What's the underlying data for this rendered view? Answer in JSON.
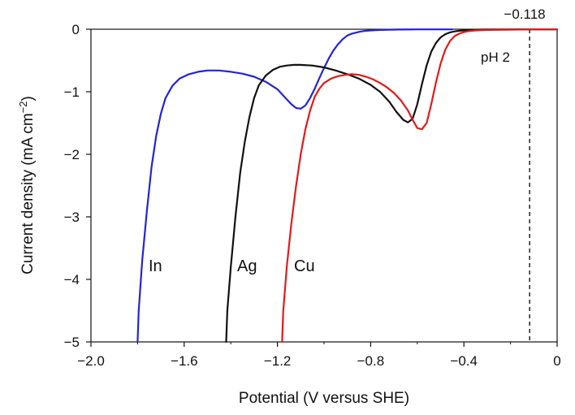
{
  "chart_data": {
    "type": "line",
    "title": "",
    "xlabel": "Potential (V versus SHE)",
    "ylabel_main": "Current density (mA cm",
    "ylabel_sup": "−2",
    "ylabel_close": ")",
    "xlim": [
      -2.0,
      0
    ],
    "ylim": [
      -5,
      0
    ],
    "x_ticks": [
      -2.0,
      -1.6,
      -1.2,
      -0.8,
      -0.4,
      0
    ],
    "x_tick_labels": [
      "−2.0",
      "−1.6",
      "−1.2",
      "−0.8",
      "−0.4",
      "0"
    ],
    "y_ticks": [
      0,
      -1,
      -2,
      -3,
      -4,
      -5
    ],
    "y_tick_labels": [
      "0",
      "−1",
      "−2",
      "−3",
      "−4",
      "−5"
    ],
    "grid": false,
    "reference_line": {
      "x": -0.118,
      "label": "−0.118",
      "style": "dashed",
      "color": "#222222"
    },
    "annotations": [
      {
        "text": "pH 2"
      }
    ],
    "series": [
      {
        "name": "In",
        "color": "#2424d6",
        "x": [
          -1.8,
          -1.795,
          -1.78,
          -1.76,
          -1.74,
          -1.72,
          -1.7,
          -1.68,
          -1.65,
          -1.62,
          -1.58,
          -1.54,
          -1.5,
          -1.45,
          -1.4,
          -1.35,
          -1.3,
          -1.25,
          -1.2,
          -1.17,
          -1.14,
          -1.12,
          -1.1,
          -1.08,
          -1.06,
          -1.04,
          -1.02,
          -1.0,
          -0.98,
          -0.96,
          -0.94,
          -0.92,
          -0.9,
          -0.88,
          -0.86,
          -0.84,
          -0.82,
          -0.8,
          -0.78,
          -0.76,
          -0.72,
          -0.68,
          -0.6,
          -0.5,
          -0.45
        ],
        "values": [
          -5.0,
          -4.5,
          -3.7,
          -2.9,
          -2.2,
          -1.7,
          -1.35,
          -1.1,
          -0.9,
          -0.79,
          -0.72,
          -0.68,
          -0.66,
          -0.66,
          -0.68,
          -0.71,
          -0.76,
          -0.84,
          -0.96,
          -1.08,
          -1.2,
          -1.26,
          -1.27,
          -1.22,
          -1.1,
          -0.95,
          -0.78,
          -0.62,
          -0.47,
          -0.34,
          -0.24,
          -0.16,
          -0.1,
          -0.07,
          -0.05,
          -0.035,
          -0.025,
          -0.02,
          -0.015,
          -0.012,
          -0.008,
          -0.005,
          -0.003,
          -0.002,
          -0.002
        ]
      },
      {
        "name": "Ag",
        "color": "#111111",
        "x": [
          -1.42,
          -1.415,
          -1.4,
          -1.38,
          -1.36,
          -1.34,
          -1.32,
          -1.3,
          -1.28,
          -1.25,
          -1.22,
          -1.19,
          -1.16,
          -1.13,
          -1.1,
          -1.05,
          -1.0,
          -0.95,
          -0.9,
          -0.85,
          -0.8,
          -0.76,
          -0.72,
          -0.69,
          -0.66,
          -0.64,
          -0.62,
          -0.6,
          -0.58,
          -0.56,
          -0.54,
          -0.52,
          -0.5,
          -0.48,
          -0.46,
          -0.44,
          -0.42,
          -0.4,
          -0.38,
          -0.35,
          -0.3,
          -0.2,
          -0.1,
          0
        ],
        "values": [
          -5.0,
          -4.5,
          -3.8,
          -3.0,
          -2.3,
          -1.8,
          -1.4,
          -1.1,
          -0.9,
          -0.74,
          -0.65,
          -0.6,
          -0.58,
          -0.57,
          -0.57,
          -0.58,
          -0.61,
          -0.66,
          -0.72,
          -0.79,
          -0.89,
          -1.0,
          -1.16,
          -1.32,
          -1.45,
          -1.49,
          -1.43,
          -1.2,
          -0.88,
          -0.58,
          -0.36,
          -0.22,
          -0.13,
          -0.08,
          -0.05,
          -0.035,
          -0.025,
          -0.018,
          -0.012,
          -0.008,
          -0.005,
          -0.003,
          -0.002,
          -0.002
        ]
      },
      {
        "name": "Cu",
        "color": "#e01b1b",
        "x": [
          -1.18,
          -1.175,
          -1.16,
          -1.14,
          -1.12,
          -1.1,
          -1.08,
          -1.06,
          -1.04,
          -1.02,
          -1.0,
          -0.97,
          -0.94,
          -0.91,
          -0.88,
          -0.85,
          -0.82,
          -0.79,
          -0.76,
          -0.73,
          -0.7,
          -0.67,
          -0.64,
          -0.62,
          -0.6,
          -0.58,
          -0.56,
          -0.54,
          -0.52,
          -0.5,
          -0.48,
          -0.46,
          -0.44,
          -0.42,
          -0.4,
          -0.38,
          -0.35,
          -0.3,
          -0.2,
          -0.1,
          0
        ],
        "values": [
          -5.0,
          -4.5,
          -3.8,
          -3.1,
          -2.5,
          -2.0,
          -1.6,
          -1.3,
          -1.08,
          -0.95,
          -0.86,
          -0.79,
          -0.75,
          -0.73,
          -0.72,
          -0.73,
          -0.76,
          -0.8,
          -0.86,
          -0.93,
          -1.02,
          -1.14,
          -1.3,
          -1.45,
          -1.58,
          -1.6,
          -1.5,
          -1.2,
          -0.85,
          -0.55,
          -0.33,
          -0.19,
          -0.11,
          -0.07,
          -0.045,
          -0.03,
          -0.02,
          -0.012,
          -0.006,
          -0.003,
          -0.002
        ]
      }
    ]
  }
}
